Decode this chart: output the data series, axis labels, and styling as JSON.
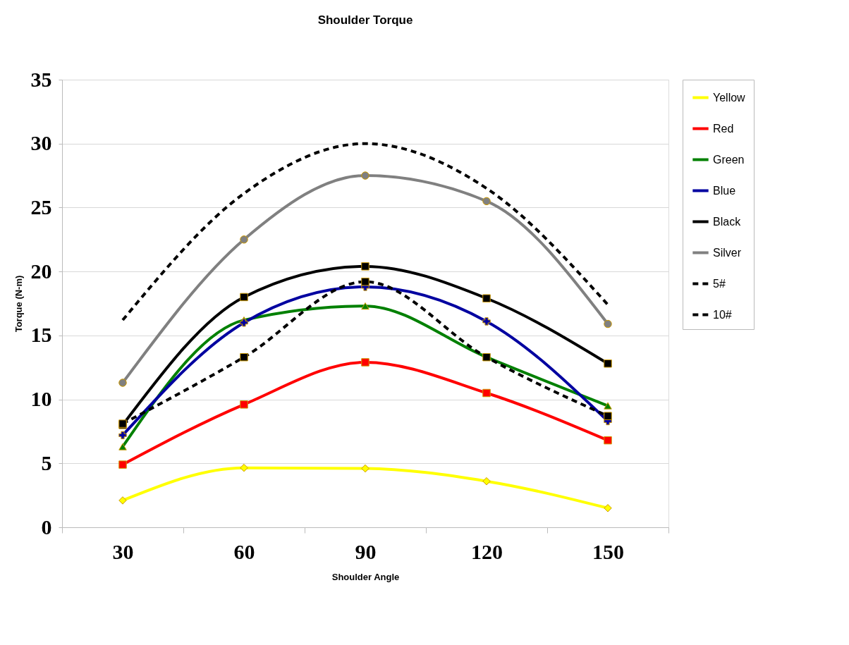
{
  "chart_data": {
    "type": "line",
    "title": "Shoulder Torque",
    "xlabel": "Shoulder Angle",
    "ylabel": "Torque (N-m)",
    "categories": [
      "30",
      "60",
      "90",
      "120",
      "150"
    ],
    "series": [
      {
        "name": "Yellow",
        "color": "#ffff00",
        "marker": "diamond",
        "line_style": "solid",
        "values": [
          2.1,
          4.65,
          4.6,
          3.6,
          1.5
        ]
      },
      {
        "name": "Red",
        "color": "#ff0000",
        "marker": "square",
        "line_style": "solid",
        "values": [
          4.9,
          9.6,
          12.9,
          10.5,
          6.8
        ]
      },
      {
        "name": "Green",
        "color": "#008000",
        "marker": "triangle",
        "line_style": "solid",
        "values": [
          6.3,
          16.2,
          17.3,
          13.3,
          9.5
        ]
      },
      {
        "name": "Blue",
        "color": "#0000a0",
        "marker": "cross",
        "line_style": "solid",
        "values": [
          7.2,
          16.0,
          18.8,
          16.1,
          8.3
        ]
      },
      {
        "name": "Black",
        "color": "#000000",
        "marker": "square",
        "line_style": "solid",
        "values": [
          8.0,
          18.0,
          20.4,
          17.9,
          12.8
        ]
      },
      {
        "name": "Silver",
        "color": "#808080",
        "marker": "circle",
        "line_style": "solid",
        "values": [
          11.3,
          22.5,
          27.5,
          25.5,
          15.9
        ]
      },
      {
        "name": "5#",
        "color": "#000000",
        "marker": "square",
        "line_style": "dashed",
        "values": [
          8.1,
          13.3,
          19.2,
          13.3,
          8.7
        ]
      },
      {
        "name": "10#",
        "color": "#000000",
        "marker": "none",
        "line_style": "dashed",
        "values": [
          16.2,
          26.1,
          30.0,
          26.5,
          17.4
        ]
      }
    ],
    "ylim": [
      0,
      35
    ],
    "yticks": [
      0,
      5,
      10,
      15,
      20,
      25,
      30,
      35
    ],
    "grid": "y",
    "legend": "right"
  }
}
